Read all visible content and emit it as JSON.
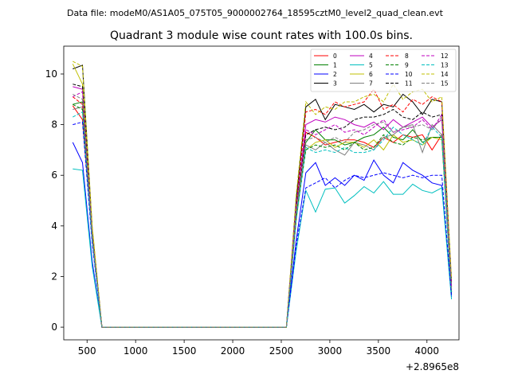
{
  "chart_data": {
    "type": "line",
    "suptitle": "Data file: modeM0/AS1A05_075T05_9000002764_18595cztM0_level2_quad_clean.evt",
    "title": "Quadrant 3 module wise count rates with 100.0s bins.",
    "xlabel": "",
    "ylabel": "",
    "x_offset_label": "+2.8965e8",
    "xlim": [
      260,
      4330
    ],
    "ylim": [
      -0.5,
      11.1
    ],
    "xticks": [
      500,
      1000,
      1500,
      2000,
      2500,
      3000,
      3500,
      4000
    ],
    "yticks": [
      0,
      2,
      4,
      6,
      8,
      10
    ],
    "grid": false,
    "legend_position": "top-right",
    "x": [
      353,
      453,
      553,
      653,
      753,
      853,
      953,
      1053,
      1153,
      1253,
      1353,
      1453,
      1553,
      1653,
      1753,
      1853,
      1953,
      2053,
      2153,
      2253,
      2353,
      2453,
      2553,
      2653,
      2753,
      2853,
      2953,
      3053,
      3153,
      3253,
      3353,
      3453,
      3553,
      3653,
      3753,
      3853,
      3953,
      4053,
      4153,
      4253
    ],
    "series": [
      {
        "name": "0",
        "color": "#ff0000",
        "dash": "solid",
        "values": [
          8.75,
          8.2,
          3.5,
          0,
          0,
          0,
          0,
          0,
          0,
          0,
          0,
          0,
          0,
          0,
          0,
          0,
          0,
          0,
          0,
          0,
          0,
          0,
          0,
          4.2,
          7.7,
          7.5,
          7.2,
          7.3,
          7.4,
          7.4,
          7.3,
          7.1,
          7.5,
          7.3,
          7.6,
          7.5,
          7.6,
          7.0,
          7.6,
          1.4
        ]
      },
      {
        "name": "1",
        "color": "#008000",
        "dash": "solid",
        "values": [
          8.8,
          8.9,
          3.6,
          0,
          0,
          0,
          0,
          0,
          0,
          0,
          0,
          0,
          0,
          0,
          0,
          0,
          0,
          0,
          0,
          0,
          0,
          0,
          0,
          4.3,
          7.3,
          7.8,
          7.4,
          7.4,
          7.2,
          7.3,
          7.5,
          7.6,
          7.9,
          7.5,
          7.4,
          7.8,
          7.3,
          7.5,
          7.5,
          1.3
        ]
      },
      {
        "name": "2",
        "color": "#0000ff",
        "dash": "solid",
        "values": [
          7.3,
          6.5,
          2.6,
          0,
          0,
          0,
          0,
          0,
          0,
          0,
          0,
          0,
          0,
          0,
          0,
          0,
          0,
          0,
          0,
          0,
          0,
          0,
          0,
          3.4,
          6.1,
          6.5,
          5.6,
          5.9,
          5.6,
          6.0,
          5.8,
          6.6,
          6.0,
          5.7,
          6.5,
          6.2,
          6.0,
          5.7,
          5.6,
          1.2
        ]
      },
      {
        "name": "3",
        "color": "#000000",
        "dash": "solid",
        "values": [
          10.2,
          10.35,
          3.9,
          0,
          0,
          0,
          0,
          0,
          0,
          0,
          0,
          0,
          0,
          0,
          0,
          0,
          0,
          0,
          0,
          0,
          0,
          0,
          0,
          5.0,
          8.7,
          9.0,
          8.2,
          8.8,
          8.7,
          8.6,
          8.8,
          8.5,
          8.8,
          8.7,
          9.2,
          8.9,
          8.4,
          9.0,
          8.9,
          1.8
        ]
      },
      {
        "name": "4",
        "color": "#bf00bf",
        "dash": "solid",
        "values": [
          9.5,
          9.4,
          3.7,
          0,
          0,
          0,
          0,
          0,
          0,
          0,
          0,
          0,
          0,
          0,
          0,
          0,
          0,
          0,
          0,
          0,
          0,
          0,
          0,
          4.6,
          8.0,
          8.2,
          8.1,
          8.3,
          8.2,
          8.0,
          7.9,
          8.1,
          7.8,
          8.2,
          7.9,
          8.1,
          8.3,
          7.9,
          8.2,
          1.5
        ]
      },
      {
        "name": "5",
        "color": "#00bfbf",
        "dash": "solid",
        "values": [
          6.25,
          6.2,
          2.4,
          0,
          0,
          0,
          0,
          0,
          0,
          0,
          0,
          0,
          0,
          0,
          0,
          0,
          0,
          0,
          0,
          0,
          0,
          0,
          0,
          3.0,
          5.4,
          4.55,
          5.45,
          5.5,
          4.9,
          5.2,
          5.55,
          5.3,
          5.75,
          5.25,
          5.25,
          5.65,
          5.4,
          5.3,
          5.5,
          1.1
        ]
      },
      {
        "name": "6",
        "color": "#bfbf00",
        "dash": "solid",
        "values": [
          10.4,
          9.6,
          3.9,
          0,
          0,
          0,
          0,
          0,
          0,
          0,
          0,
          0,
          0,
          0,
          0,
          0,
          0,
          0,
          0,
          0,
          0,
          0,
          0,
          4.8,
          7.0,
          7.3,
          7.4,
          7.1,
          7.3,
          7.3,
          7.1,
          7.4,
          7.0,
          7.6,
          7.3,
          7.4,
          7.2,
          7.5,
          7.4,
          1.5
        ]
      },
      {
        "name": "7",
        "color": "#808080",
        "dash": "solid",
        "values": [
          8.6,
          8.7,
          3.5,
          0,
          0,
          0,
          0,
          0,
          0,
          0,
          0,
          0,
          0,
          0,
          0,
          0,
          0,
          0,
          0,
          0,
          0,
          0,
          0,
          4.4,
          7.2,
          7.0,
          7.3,
          7.0,
          6.8,
          7.3,
          7.2,
          7.0,
          7.5,
          7.6,
          7.9,
          8.0,
          6.9,
          8.0,
          7.6,
          1.4
        ]
      },
      {
        "name": "8",
        "color": "#ff0000",
        "dash": "dashed",
        "values": [
          9.1,
          8.8,
          3.6,
          0,
          0,
          0,
          0,
          0,
          0,
          0,
          0,
          0,
          0,
          0,
          0,
          0,
          0,
          0,
          0,
          0,
          0,
          0,
          0,
          4.7,
          8.5,
          8.6,
          8.4,
          8.9,
          8.7,
          8.8,
          8.9,
          9.4,
          8.6,
          8.8,
          8.5,
          9.0,
          8.8,
          9.1,
          8.9,
          1.6
        ]
      },
      {
        "name": "9",
        "color": "#008000",
        "dash": "dashed",
        "values": [
          8.8,
          8.6,
          3.5,
          0,
          0,
          0,
          0,
          0,
          0,
          0,
          0,
          0,
          0,
          0,
          0,
          0,
          0,
          0,
          0,
          0,
          0,
          0,
          0,
          4.3,
          7.0,
          7.2,
          7.1,
          7.2,
          7.0,
          7.3,
          7.0,
          7.1,
          7.6,
          7.3,
          7.2,
          7.5,
          7.4,
          7.5,
          7.5,
          1.4
        ]
      },
      {
        "name": "10",
        "color": "#0000ff",
        "dash": "dashed",
        "values": [
          8.0,
          8.1,
          3.3,
          0,
          0,
          0,
          0,
          0,
          0,
          0,
          0,
          0,
          0,
          0,
          0,
          0,
          0,
          0,
          0,
          0,
          0,
          0,
          0,
          3.2,
          5.5,
          5.7,
          5.9,
          5.5,
          5.8,
          6.0,
          5.9,
          6.0,
          6.1,
          6.0,
          5.9,
          6.0,
          5.9,
          6.0,
          6.0,
          1.2
        ]
      },
      {
        "name": "11",
        "color": "#000000",
        "dash": "dashed",
        "values": [
          9.6,
          9.5,
          3.7,
          0,
          0,
          0,
          0,
          0,
          0,
          0,
          0,
          0,
          0,
          0,
          0,
          0,
          0,
          0,
          0,
          0,
          0,
          0,
          0,
          4.7,
          7.6,
          7.8,
          7.9,
          7.8,
          7.9,
          8.2,
          8.3,
          8.3,
          8.4,
          8.6,
          8.3,
          8.2,
          8.5,
          8.3,
          8.4,
          1.6
        ]
      },
      {
        "name": "12",
        "color": "#bf00bf",
        "dash": "dashed",
        "values": [
          9.1,
          9.3,
          3.6,
          0,
          0,
          0,
          0,
          0,
          0,
          0,
          0,
          0,
          0,
          0,
          0,
          0,
          0,
          0,
          0,
          0,
          0,
          0,
          0,
          4.8,
          7.8,
          7.6,
          7.8,
          8.0,
          7.7,
          7.8,
          7.6,
          7.9,
          8.2,
          7.7,
          7.8,
          7.9,
          8.2,
          7.8,
          8.4,
          1.6
        ]
      },
      {
        "name": "13",
        "color": "#00bfbf",
        "dash": "dashed",
        "values": [
          8.3,
          8.5,
          3.4,
          0,
          0,
          0,
          0,
          0,
          0,
          0,
          0,
          0,
          0,
          0,
          0,
          0,
          0,
          0,
          0,
          0,
          0,
          0,
          0,
          4.2,
          7.1,
          6.9,
          7.0,
          6.9,
          7.1,
          6.9,
          6.9,
          7.0,
          7.4,
          7.9,
          7.6,
          7.4,
          7.2,
          7.9,
          7.5,
          1.4
        ]
      },
      {
        "name": "14",
        "color": "#bfbf00",
        "dash": "dashed",
        "values": [
          10.5,
          10.3,
          4.0,
          0,
          0,
          0,
          0,
          0,
          0,
          0,
          0,
          0,
          0,
          0,
          0,
          0,
          0,
          0,
          0,
          0,
          0,
          0,
          0,
          5.2,
          8.9,
          8.4,
          8.7,
          8.6,
          8.9,
          8.9,
          9.1,
          9.2,
          8.9,
          9.6,
          9.0,
          9.3,
          9.4,
          8.9,
          9.1,
          1.9
        ]
      },
      {
        "name": "15",
        "color": "#808080",
        "dash": "dashed",
        "values": [
          9.2,
          9.0,
          3.6,
          0,
          0,
          0,
          0,
          0,
          0,
          0,
          0,
          0,
          0,
          0,
          0,
          0,
          0,
          0,
          0,
          0,
          0,
          0,
          0,
          4.6,
          7.4,
          7.5,
          7.3,
          7.5,
          7.3,
          7.7,
          7.8,
          8.0,
          8.1,
          7.7,
          7.9,
          7.9,
          8.0,
          7.8,
          8.3,
          1.5
        ]
      }
    ]
  }
}
